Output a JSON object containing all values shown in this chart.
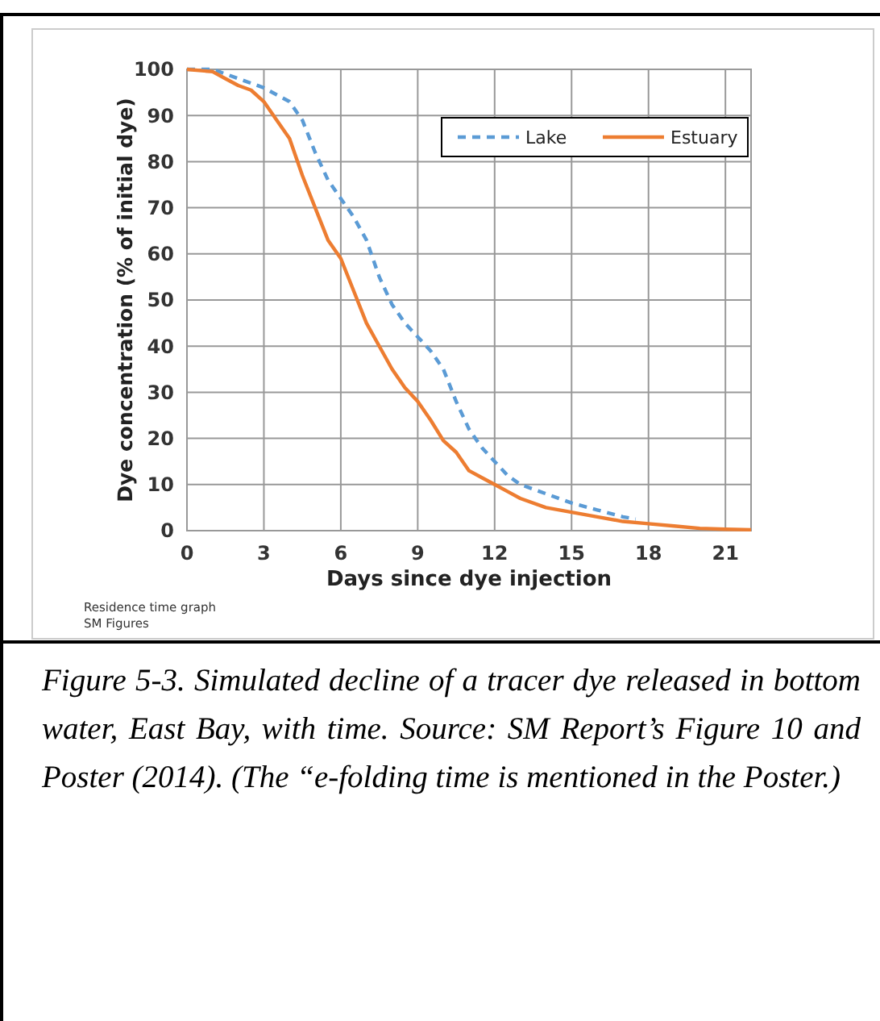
{
  "chart_data": {
    "type": "line",
    "xlabel": "Days since dye injection",
    "ylabel": "Dye concentration (% of initial dye)",
    "xlim": [
      0,
      22
    ],
    "xticks": [
      0,
      3,
      6,
      9,
      12,
      15,
      18,
      21
    ],
    "ylim": [
      0,
      100
    ],
    "yticks": [
      0,
      10,
      20,
      30,
      40,
      50,
      60,
      70,
      80,
      90,
      100
    ],
    "grid": true,
    "legend": "top right",
    "series": [
      {
        "name": "Lake",
        "color": "#5b9bd5",
        "line_style": "dashed",
        "x": [
          0,
          1,
          2,
          3,
          4,
          4.5,
          5,
          5.5,
          6,
          6.5,
          7,
          7.5,
          8,
          8.5,
          9,
          9.5,
          10,
          10.5,
          11,
          11.5,
          12,
          12.5,
          13,
          14,
          15,
          16,
          17,
          17.5
        ],
        "values": [
          100,
          100,
          98,
          96,
          93,
          89,
          82,
          76,
          72,
          68,
          63,
          55,
          49,
          45,
          42,
          39,
          35,
          28,
          22,
          18,
          15,
          12,
          10,
          8,
          6,
          4.5,
          3,
          2.5
        ]
      },
      {
        "name": "Estuary",
        "color": "#ed7d31",
        "line_style": "solid",
        "x": [
          0,
          1,
          1.5,
          2,
          2.5,
          3,
          3.5,
          4,
          4.5,
          5,
          5.5,
          6,
          6.5,
          7,
          7.5,
          8,
          8.5,
          9,
          9.5,
          10,
          10.5,
          11,
          11.5,
          12,
          12.5,
          13,
          14,
          15,
          16,
          17,
          18,
          19,
          20,
          21,
          22
        ],
        "values": [
          100,
          99.5,
          98,
          96.5,
          95.5,
          93,
          89,
          85,
          77,
          70,
          63,
          59,
          52,
          45,
          40,
          35,
          31,
          28,
          24,
          19.5,
          17,
          13,
          11.5,
          10,
          8.5,
          7,
          5,
          4,
          3,
          2,
          1.5,
          1,
          0.5,
          0.3,
          0.2
        ]
      }
    ],
    "annotations": [
      "Residence time graph",
      "SM Figures",
      "Figure 5-3.  Simulated decline of a tracer dye released in bottom water, East Bay, with time. Source: SM Report’s Figure 10 and Poster (2014). (The “e-folding time is mentioned in the Poster.)"
    ]
  }
}
